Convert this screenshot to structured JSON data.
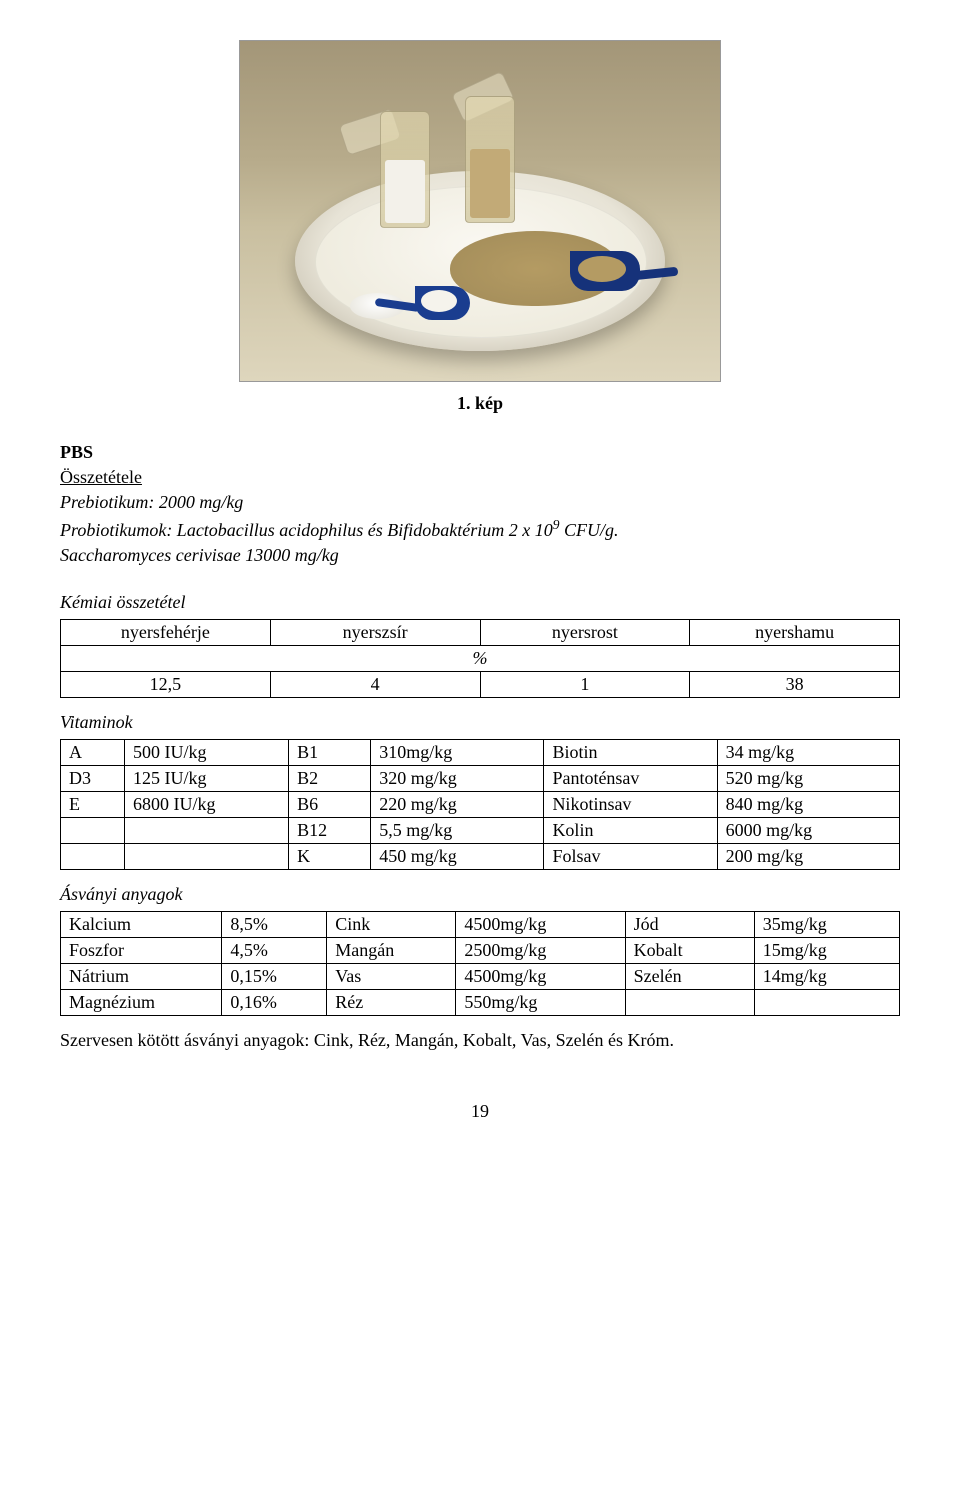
{
  "figure": {
    "caption": "1. kép"
  },
  "heading": "PBS",
  "composition_heading": "Összetétele",
  "prebiotic_line_label": "Prebiotikum:",
  "prebiotic_line_value": "  2000 mg/kg",
  "probiotic_line_prefix": "Probiotikumok: Lactobacillus acidophilus és Bifidobaktérium 2 x 10",
  "probiotic_exponent": "9",
  "probiotic_line_suffix": " CFU/g.",
  "saccharomyces_line": "Saccharomyces cerivisae 13000 mg/kg",
  "chem_heading": "Kémiai összetétel",
  "chem_table": {
    "headers": [
      "nyersfehérje",
      "nyerszsír",
      "nyersrost",
      "nyershamu"
    ],
    "percent_label": "%",
    "values": [
      "12,5",
      "4",
      "1",
      "38"
    ]
  },
  "vitamins_heading": "Vitaminok",
  "vitamins": [
    {
      "c1": "A",
      "c2": "500 IU/kg",
      "c3": "B1",
      "c4": "310mg/kg",
      "c5": "Biotin",
      "c6": "34 mg/kg"
    },
    {
      "c1": "D3",
      "c2": "125 IU/kg",
      "c3": "B2",
      "c4": "320 mg/kg",
      "c5": "Pantoténsav",
      "c6": "520 mg/kg"
    },
    {
      "c1": "E",
      "c2": "6800 IU/kg",
      "c3": "B6",
      "c4": "220 mg/kg",
      "c5": "Nikotinsav",
      "c6": "840 mg/kg"
    },
    {
      "c1": "",
      "c2": "",
      "c3": "B12",
      "c4": "5,5 mg/kg",
      "c5": "Kolin",
      "c6": "6000 mg/kg"
    },
    {
      "c1": "",
      "c2": "",
      "c3": "K",
      "c4": "450 mg/kg",
      "c5": "Folsav",
      "c6": "200 mg/kg"
    }
  ],
  "minerals_heading": "Ásványi anyagok",
  "minerals": [
    {
      "c1": "Kalcium",
      "c2": "8,5%",
      "c3": "Cink",
      "c4": "4500mg/kg",
      "c5": "Jód",
      "c6": "35mg/kg"
    },
    {
      "c1": "Foszfor",
      "c2": "4,5%",
      "c3": "Mangán",
      "c4": "2500mg/kg",
      "c5": "Kobalt",
      "c6": "15mg/kg"
    },
    {
      "c1": "Nátrium",
      "c2": "0,15%",
      "c3": "Vas",
      "c4": "4500mg/kg",
      "c5": "Szelén",
      "c6": "14mg/kg"
    },
    {
      "c1": "Magnézium",
      "c2": "0,16%",
      "c3": "Réz",
      "c4": "550mg/kg",
      "c5": "",
      "c6": ""
    }
  ],
  "footer_line": "Szervesen kötött ásványi anyagok: Cink, Réz, Mangán, Kobalt, Vas, Szelén és Króm.",
  "page_number": "19"
}
